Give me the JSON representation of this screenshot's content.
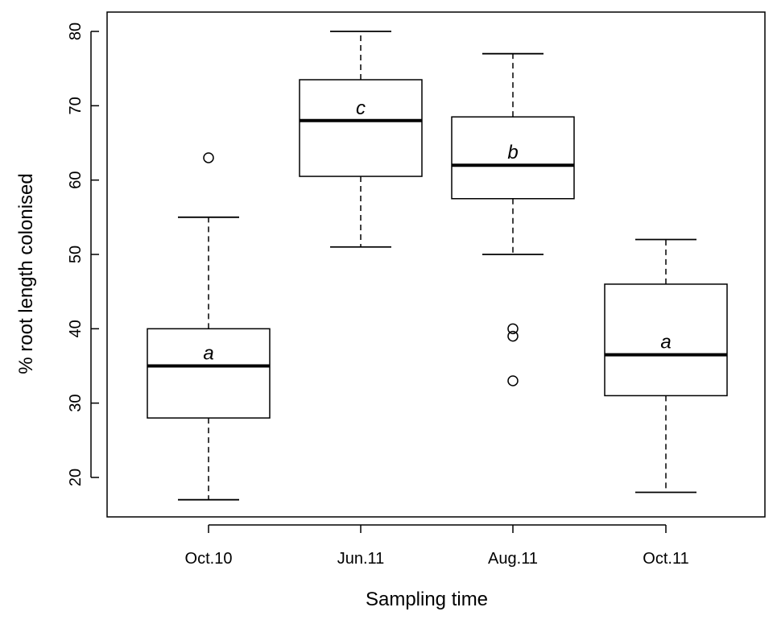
{
  "chart_data": {
    "type": "boxplot",
    "xlabel": "Sampling time",
    "ylabel": "% root length colonised",
    "categories": [
      "Oct.10",
      "Jun.11",
      "Aug.11",
      "Oct.11"
    ],
    "yticks": [
      20,
      30,
      40,
      50,
      60,
      70,
      80
    ],
    "ylim": [
      15,
      82.5
    ],
    "grid": false,
    "boxes": [
      {
        "category": "Oct.10",
        "whisker_low": 17,
        "q1": 28,
        "median": 35,
        "q3": 40,
        "whisker_high": 55,
        "outliers": [
          63
        ],
        "letter": "a"
      },
      {
        "category": "Jun.11",
        "whisker_low": 51,
        "q1": 60.5,
        "median": 68,
        "q3": 73.5,
        "whisker_high": 80,
        "outliers": [],
        "letter": "c"
      },
      {
        "category": "Aug.11",
        "whisker_low": 50,
        "q1": 57.5,
        "median": 62,
        "q3": 68.5,
        "whisker_high": 77,
        "outliers": [
          40,
          39,
          33
        ],
        "letter": "b"
      },
      {
        "category": "Oct.11",
        "whisker_low": 18,
        "q1": 31,
        "median": 36.5,
        "q3": 46,
        "whisker_high": 52,
        "outliers": [],
        "letter": "a"
      }
    ]
  }
}
